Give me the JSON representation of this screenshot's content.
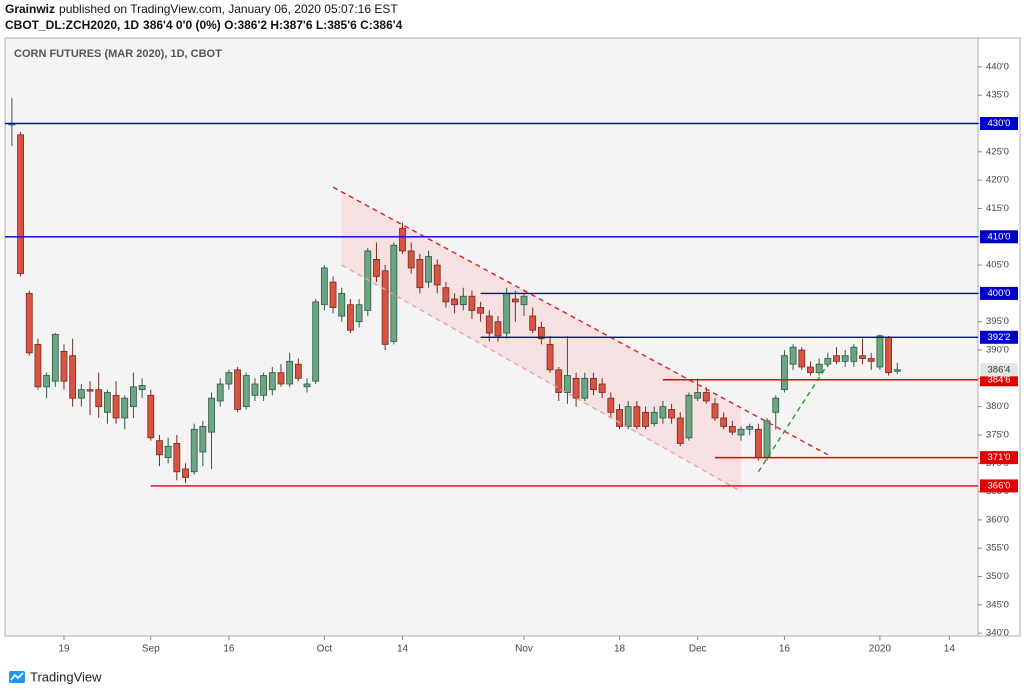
{
  "header": {
    "author": "Grainwiz",
    "published": "published on TradingView.com, January 06, 2020 05:07:16 EST",
    "symbol": "CBOT_DL:ZCH2020, 1D",
    "quote": "386'4 0'0 (0%) O:386'2 H:387'6 L:385'6 C:386'4"
  },
  "footer": {
    "brand": "TradingView"
  },
  "chart_data": {
    "type": "candlestick",
    "title": "CORN FUTURES (MAR 2020), 1D, CBOT",
    "categories": [
      null,
      null,
      null,
      null,
      null,
      null,
      "19",
      null,
      null,
      null,
      null,
      null,
      null,
      null,
      null,
      null,
      "Sep",
      null,
      null,
      null,
      null,
      null,
      null,
      null,
      null,
      "16",
      null,
      null,
      null,
      null,
      null,
      null,
      null,
      null,
      null,
      null,
      "Oct",
      null,
      null,
      null,
      null,
      null,
      null,
      null,
      null,
      "14",
      null,
      null,
      null,
      null,
      null,
      null,
      null,
      null,
      null,
      null,
      null,
      null,
      null,
      "Nov",
      null,
      null,
      null,
      null,
      null,
      null,
      null,
      null,
      null,
      null,
      "18",
      null,
      null,
      null,
      null,
      null,
      null,
      null,
      null,
      "Dec",
      null,
      null,
      null,
      null,
      null,
      null,
      null,
      null,
      null,
      "16",
      null,
      null,
      null,
      null,
      null,
      null,
      null,
      null,
      null,
      null,
      "2020",
      null,
      null,
      null,
      null,
      null,
      null,
      null,
      "14"
    ],
    "open": [
      429.75,
      428,
      400,
      391,
      383.5,
      384.5,
      389.75,
      389,
      381.5,
      383,
      383,
      379,
      382,
      378,
      380,
      383,
      382,
      374,
      371,
      373.5,
      369,
      368.5,
      372,
      375.5,
      381,
      384,
      386.5,
      380,
      382,
      382,
      383,
      386,
      384,
      387.5,
      383.5,
      384.5,
      398,
      402,
      396,
      398,
      395,
      397,
      406,
      404,
      391.5,
      411.5,
      407.5,
      406,
      402,
      405,
      401,
      399,
      398,
      399.5,
      397.5,
      396,
      395,
      393,
      399,
      398,
      396,
      394,
      391,
      386.5,
      382.5,
      385,
      381.5,
      385,
      384,
      381.5,
      379.5,
      376.5,
      380,
      379,
      377,
      378,
      379.5,
      378,
      374.5,
      381.5,
      382.5,
      380.5,
      378,
      376.5,
      375,
      376,
      376,
      371,
      379,
      383,
      387.5,
      390,
      387,
      386,
      387.5,
      389,
      388,
      388,
      389,
      388.5,
      387,
      392.25,
      386.25,
      null,
      null,
      null,
      null,
      null,
      null
    ],
    "high": [
      434.5,
      428.5,
      400.5,
      392,
      386,
      393,
      391,
      392,
      384,
      384.5,
      386,
      383,
      384.5,
      382,
      386,
      385,
      383,
      375,
      374.5,
      375,
      370,
      377,
      377.5,
      382.5,
      385,
      386.5,
      387,
      386,
      385,
      386,
      387,
      387.5,
      389.5,
      388.5,
      385,
      399,
      405,
      403,
      401,
      399,
      399,
      408,
      409,
      405,
      409,
      412.5,
      409,
      407,
      407.5,
      406,
      402,
      400,
      401,
      400.5,
      398.5,
      397,
      396,
      401,
      400.5,
      400,
      397.5,
      395,
      392.5,
      387,
      392.5,
      386,
      386,
      386,
      385,
      382.5,
      380.5,
      381,
      381,
      380,
      380,
      381,
      380.5,
      379,
      382.5,
      385,
      383.5,
      381.5,
      379,
      377.5,
      376.5,
      377,
      377,
      378,
      382,
      390,
      391,
      390.5,
      388,
      388.5,
      389.5,
      390.5,
      390,
      391,
      392,
      389.5,
      392.75,
      392.5,
      387.75,
      null,
      null,
      null,
      null,
      null,
      null
    ],
    "low": [
      426,
      403,
      389,
      383,
      381.5,
      383.5,
      383,
      380,
      380,
      378.5,
      378,
      377,
      377,
      376,
      378,
      381.5,
      374,
      369.5,
      370,
      367,
      366.5,
      368,
      369.5,
      369,
      380,
      383,
      379,
      379.5,
      381,
      381,
      382,
      383.5,
      383.5,
      384.5,
      382.5,
      384,
      397,
      396.5,
      395,
      393,
      394,
      396,
      402,
      390,
      391,
      407,
      403.5,
      400,
      401,
      400,
      397.5,
      396.5,
      397,
      395.5,
      395,
      391.5,
      391.5,
      392,
      395,
      396,
      393,
      391,
      386,
      381,
      380.5,
      380,
      381,
      382,
      381.5,
      378,
      376,
      376,
      376,
      376,
      376.5,
      377,
      377,
      373,
      374,
      381,
      380.5,
      377.5,
      376,
      375,
      374,
      375,
      370.5,
      370.5,
      376,
      382.5,
      386.5,
      386.5,
      385.5,
      385.5,
      387,
      387.5,
      387,
      387,
      387.5,
      386.5,
      386.5,
      385.5,
      385.75,
      null,
      null,
      null,
      null,
      null,
      null
    ],
    "close": [
      430,
      403.5,
      389.5,
      383.5,
      385.5,
      392.75,
      384.5,
      381.5,
      383,
      382.75,
      380,
      382.5,
      378,
      381.5,
      383.5,
      383.75,
      374.5,
      371.5,
      373,
      368.5,
      367.5,
      376,
      376.5,
      381.5,
      384,
      386,
      379.5,
      385.5,
      384,
      385.5,
      386,
      384,
      388,
      385,
      384,
      398.5,
      404.5,
      397.5,
      400,
      393.5,
      398,
      407.5,
      403,
      391,
      408.5,
      407.5,
      404.5,
      401,
      406.5,
      401.5,
      398.5,
      398,
      399.5,
      397,
      396.5,
      393,
      392.5,
      400,
      398.5,
      399.5,
      393.5,
      392,
      386.5,
      382.5,
      385.5,
      381.5,
      385,
      383,
      382.5,
      379,
      376.5,
      380,
      376.5,
      376.5,
      379,
      380,
      378,
      373.5,
      382,
      382.5,
      381,
      378,
      376.5,
      375.5,
      376,
      376.5,
      371,
      377.5,
      381.5,
      389,
      390.5,
      387,
      386,
      387.5,
      388.5,
      388,
      389,
      390.5,
      388.5,
      388,
      392.5,
      386,
      386.5,
      null,
      null,
      null,
      null,
      null,
      null
    ],
    "up_color": "#6ba583",
    "down_color": "#d75442",
    "ylim": [
      339.5,
      445.1
    ],
    "yticks": [
      {
        "value": 340,
        "label": "340'0"
      },
      {
        "value": 345,
        "label": "345'0"
      },
      {
        "value": 350,
        "label": "350'0"
      },
      {
        "value": 355,
        "label": "355'0"
      },
      {
        "value": 360,
        "label": "360'0"
      },
      {
        "value": 365,
        "label": "365'0"
      },
      {
        "value": 370,
        "label": "370'0"
      },
      {
        "value": 375,
        "label": "375'0"
      },
      {
        "value": 380,
        "label": "380'0"
      },
      {
        "value": 385,
        "label": "385'0"
      },
      {
        "value": 390,
        "label": "390'0"
      },
      {
        "value": 395,
        "label": "395'0"
      },
      {
        "value": 400,
        "label": "400'0"
      },
      {
        "value": 405,
        "label": "405'0"
      },
      {
        "value": 410,
        "label": "410'0"
      },
      {
        "value": 415,
        "label": "415'0"
      },
      {
        "value": 420,
        "label": "420'0"
      },
      {
        "value": 425,
        "label": "425'0"
      },
      {
        "value": 430,
        "label": "430'0"
      },
      {
        "value": 435,
        "label": "435'0"
      },
      {
        "value": 440,
        "label": "440'0"
      }
    ],
    "grid": false,
    "levels": [
      {
        "value": 430,
        "label": "430'0",
        "color": "#0000c8"
      },
      {
        "value": 410,
        "label": "410'0",
        "color": "#0000c8"
      },
      {
        "value": 400,
        "label": "400'0",
        "color": "#0000c8",
        "start": 54
      },
      {
        "value": 392.25,
        "label": "392'2",
        "color": "#0000c8",
        "start": 54
      },
      {
        "value": 384.75,
        "label": "384'6",
        "color": "#e00000",
        "start": 75
      },
      {
        "value": 371,
        "label": "371'0",
        "color": "#e00000",
        "start": 81
      },
      {
        "value": 366,
        "label": "366'0",
        "color": "#e00000",
        "start": 16
      }
    ],
    "last": {
      "value": 386.5,
      "label": "386'4"
    },
    "trendlines": [
      {
        "x": [
          37,
          94
        ],
        "y": [
          418.75,
          371.5
        ],
        "color": "#e02020"
      },
      {
        "x": [
          38,
          84
        ],
        "y": [
          405,
          365
        ],
        "color": "#f0a0a8"
      },
      {
        "x": [
          86,
          94
        ],
        "y": [
          368.5,
          387.5
        ],
        "color": "#20a020"
      }
    ]
  }
}
